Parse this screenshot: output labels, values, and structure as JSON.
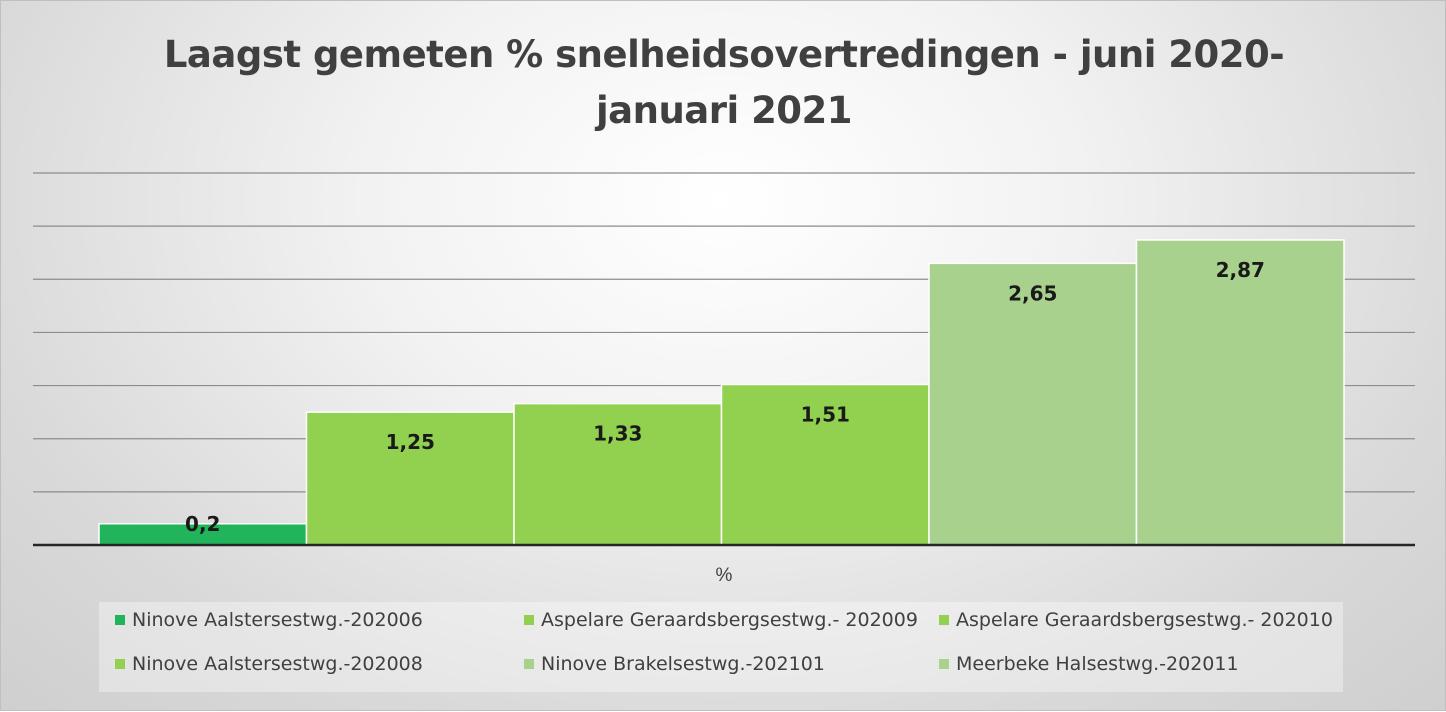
{
  "title_line1": "Laagst gemeten % snelheidsovertredingen - juni 2020-",
  "title_line2": "januari 2021",
  "chart_data": {
    "type": "bar",
    "title": "Laagst gemeten % snelheidsovertredingen - juni 2020-januari 2021",
    "xlabel": "%",
    "ylabel": "",
    "categories": [
      "%"
    ],
    "ylim": [
      0,
      3.5
    ],
    "grid": true,
    "legend_position": "bottom",
    "data_labels": true,
    "series": [
      {
        "name": "Ninove Aalstersestwg.-202006",
        "value": 0.2,
        "label": "0,2",
        "color": "#22b45a"
      },
      {
        "name": "Aspelare Geraardsbergsestwg.- 202009",
        "value": 1.25,
        "label": "1,25",
        "color": "#92d050"
      },
      {
        "name": "Aspelare Geraardsbergsestwg.- 202010",
        "value": 1.33,
        "label": "1,33",
        "color": "#92d050"
      },
      {
        "name": "Ninove Aalstersestwg.-202008",
        "value": 1.51,
        "label": "1,51",
        "color": "#92d050"
      },
      {
        "name": "Ninove Brakelsestwg.-202101",
        "value": 2.65,
        "label": "2,65",
        "color": "#a9d18e"
      },
      {
        "name": "Meerbeke Halsestwg.-202011",
        "value": 2.87,
        "label": "2,87",
        "color": "#a9d18e"
      }
    ]
  }
}
